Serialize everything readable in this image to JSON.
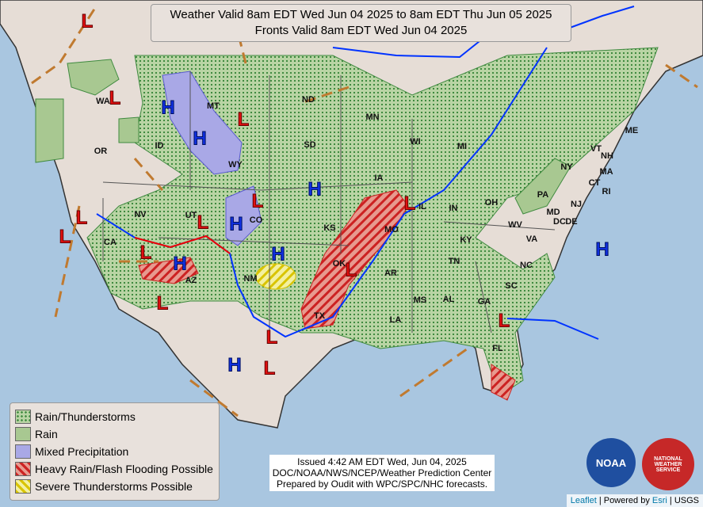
{
  "header": {
    "line1": "Weather Valid 8am EDT Wed Jun 04 2025 to 8am EDT Thu Jun 05 2025",
    "line2": "Fronts Valid 8am EDT Wed Jun 04 2025"
  },
  "legend": [
    "Rain/Thunderstorms",
    "Rain",
    "Mixed Precipitation",
    "Heavy Rain/Flash Flooding Possible",
    "Severe Thunderstorms Possible"
  ],
  "issued": {
    "line1": "Issued  4:42 AM EDT  Wed, Jun 04, 2025",
    "line2": "DOC/NOAA/NWS/NCEP/Weather Prediction Center",
    "line3": "Prepared by Oudit with WPC/SPC/NHC forecasts."
  },
  "attribution": {
    "leaflet": "Leaflet",
    "powered": "| Powered by",
    "esri": "Esri",
    "usgs": "| USGS"
  },
  "logos": {
    "noaa": "NOAA",
    "nws": "NATIONAL WEATHER SERVICE"
  },
  "states": [
    "WA",
    "OR",
    "ID",
    "MT",
    "WY",
    "ND",
    "SD",
    "MN",
    "WI",
    "MI",
    "IA",
    "IL",
    "IN",
    "OH",
    "KS",
    "MO",
    "OK",
    "TX",
    "NM",
    "AZ",
    "UT",
    "CO",
    "NV",
    "CA",
    "AR",
    "LA",
    "MS",
    "AL",
    "GA",
    "FL",
    "SC",
    "NC",
    "TN",
    "KY",
    "VA",
    "WV",
    "PA",
    "NY",
    "VT",
    "NH",
    "ME",
    "MA",
    "CT",
    "RI",
    "NJ",
    "DE",
    "MD",
    "DC"
  ],
  "highs": [
    "H",
    "H",
    "H",
    "H",
    "H",
    "H",
    "H",
    "H"
  ],
  "lows": [
    "L",
    "L",
    "L",
    "L",
    "L",
    "L",
    "L",
    "L",
    "L",
    "L",
    "L",
    "L",
    "L",
    "L"
  ]
}
